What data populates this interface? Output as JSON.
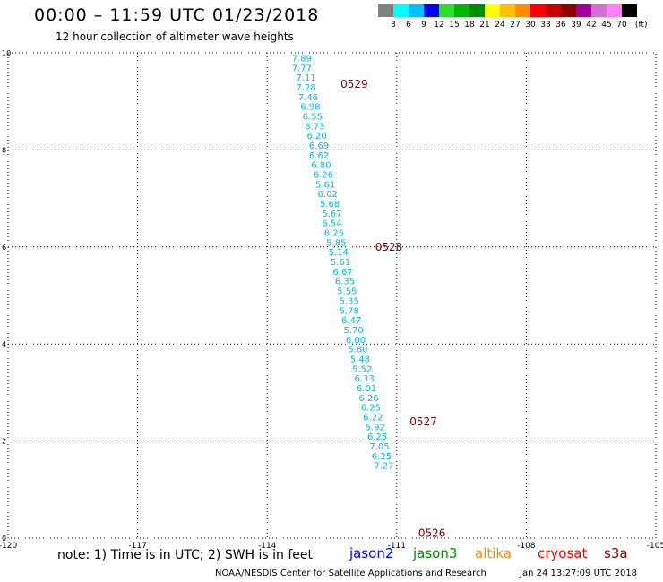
{
  "header": {
    "title": "00:00 – 11:59 UTC 01/23/2018",
    "subtitle": "12 hour collection of altimeter wave heights"
  },
  "colorbar": {
    "unit": "(ft)",
    "colors": [
      "#808080",
      "#00ffff",
      "#00bfff",
      "#0000ff",
      "#2edb2e",
      "#00b400",
      "#008c00",
      "#ffff00",
      "#ffbf00",
      "#ff8c00",
      "#ff0000",
      "#c80000",
      "#8b0000",
      "#a000a0",
      "#d070d0",
      "#ff80ff",
      "#000000"
    ],
    "labels": [
      "3",
      "6",
      "9",
      "12",
      "15",
      "18",
      "21",
      "24",
      "27",
      "30",
      "33",
      "36",
      "39",
      "42",
      "45",
      "70"
    ]
  },
  "chart_data": {
    "type": "scatter",
    "title": "00:00 – 11:59 UTC 01/23/2018",
    "subtitle": "12 hour collection of altimeter wave heights",
    "xlim": [
      -120,
      -105
    ],
    "ylim": [
      0,
      10
    ],
    "x_ticks": [
      "-120",
      "-117",
      "-114",
      "-111",
      "-108",
      "-105"
    ],
    "y_ticks": [
      "0",
      "2",
      "4",
      "6",
      "8",
      "10"
    ],
    "grid": true,
    "units": "ft",
    "series": [
      {
        "name": "jason3",
        "color": "#00bcd4",
        "points": [
          {
            "lon": -113.2,
            "lat": 9.9,
            "swh": "7.89"
          },
          {
            "lon": -113.2,
            "lat": 9.7,
            "swh": "7.77"
          },
          {
            "lon": -113.1,
            "lat": 9.5,
            "swh": "7.11"
          },
          {
            "lon": -113.1,
            "lat": 9.3,
            "swh": "7.28"
          },
          {
            "lon": -113.05,
            "lat": 9.1,
            "swh": "7.46"
          },
          {
            "lon": -113.0,
            "lat": 8.9,
            "swh": "6.98"
          },
          {
            "lon": -112.95,
            "lat": 8.7,
            "swh": "6.55"
          },
          {
            "lon": -112.9,
            "lat": 8.5,
            "swh": "6.73"
          },
          {
            "lon": -112.85,
            "lat": 8.3,
            "swh": "6.20"
          },
          {
            "lon": -112.8,
            "lat": 8.1,
            "swh": "6.69"
          },
          {
            "lon": -112.8,
            "lat": 7.9,
            "swh": "6.62"
          },
          {
            "lon": -112.75,
            "lat": 7.7,
            "swh": "6.80"
          },
          {
            "lon": -112.7,
            "lat": 7.5,
            "swh": "6.26"
          },
          {
            "lon": -112.65,
            "lat": 7.3,
            "swh": "5.61"
          },
          {
            "lon": -112.6,
            "lat": 7.1,
            "swh": "6.02"
          },
          {
            "lon": -112.55,
            "lat": 6.9,
            "swh": "5.68"
          },
          {
            "lon": -112.5,
            "lat": 6.7,
            "swh": "5.67"
          },
          {
            "lon": -112.5,
            "lat": 6.5,
            "swh": "6.54"
          },
          {
            "lon": -112.45,
            "lat": 6.3,
            "swh": "6.25"
          },
          {
            "lon": -112.4,
            "lat": 6.1,
            "swh": "5.85"
          },
          {
            "lon": -112.35,
            "lat": 5.9,
            "swh": "5.14"
          },
          {
            "lon": -112.3,
            "lat": 5.7,
            "swh": "5.61"
          },
          {
            "lon": -112.25,
            "lat": 5.5,
            "swh": "6.67"
          },
          {
            "lon": -112.2,
            "lat": 5.3,
            "swh": "6.35"
          },
          {
            "lon": -112.15,
            "lat": 5.1,
            "swh": "5.55"
          },
          {
            "lon": -112.1,
            "lat": 4.9,
            "swh": "5.35"
          },
          {
            "lon": -112.1,
            "lat": 4.7,
            "swh": "5.78"
          },
          {
            "lon": -112.05,
            "lat": 4.5,
            "swh": "6.47"
          },
          {
            "lon": -112.0,
            "lat": 4.3,
            "swh": "5.70"
          },
          {
            "lon": -111.95,
            "lat": 4.1,
            "swh": "6.00"
          },
          {
            "lon": -111.9,
            "lat": 3.9,
            "swh": "5.80"
          },
          {
            "lon": -111.85,
            "lat": 3.7,
            "swh": "5.48"
          },
          {
            "lon": -111.8,
            "lat": 3.5,
            "swh": "5.52"
          },
          {
            "lon": -111.75,
            "lat": 3.3,
            "swh": "6.33"
          },
          {
            "lon": -111.7,
            "lat": 3.1,
            "swh": "6.01"
          },
          {
            "lon": -111.65,
            "lat": 2.9,
            "swh": "6.26"
          },
          {
            "lon": -111.6,
            "lat": 2.7,
            "swh": "6.25"
          },
          {
            "lon": -111.55,
            "lat": 2.5,
            "swh": "6.22"
          },
          {
            "lon": -111.5,
            "lat": 2.3,
            "swh": "5.92"
          },
          {
            "lon": -111.45,
            "lat": 2.1,
            "swh": "6.25"
          },
          {
            "lon": -111.4,
            "lat": 1.9,
            "swh": "7.05"
          },
          {
            "lon": -111.35,
            "lat": 1.7,
            "swh": "6.25"
          },
          {
            "lon": -111.3,
            "lat": 1.5,
            "swh": "7.27"
          }
        ]
      }
    ],
    "annotations": [
      {
        "text": "0529",
        "lon": -112.3,
        "lat": 9.35
      },
      {
        "text": "0528",
        "lon": -111.5,
        "lat": 6.0
      },
      {
        "text": "0527",
        "lon": -110.7,
        "lat": 2.4
      },
      {
        "text": "0526",
        "lon": -110.5,
        "lat": 0.1
      }
    ],
    "annotation_color": "#800000"
  },
  "footer": {
    "note": "note: 1) Time is in UTC; 2) SWH is in feet",
    "satellites": [
      {
        "name": "jason2",
        "color": "#0000ff"
      },
      {
        "name": "jason3",
        "color": "#008c00"
      },
      {
        "name": "altika",
        "color": "#ff8c00"
      },
      {
        "name": "cryosat",
        "color": "#ff0000"
      },
      {
        "name": "s3a",
        "color": "#8b0000"
      }
    ],
    "credit": "NOAA/NESDIS Center for Satellite Applications and Research",
    "timestamp": "Jan 24 13:27:09 UTC 2018"
  }
}
